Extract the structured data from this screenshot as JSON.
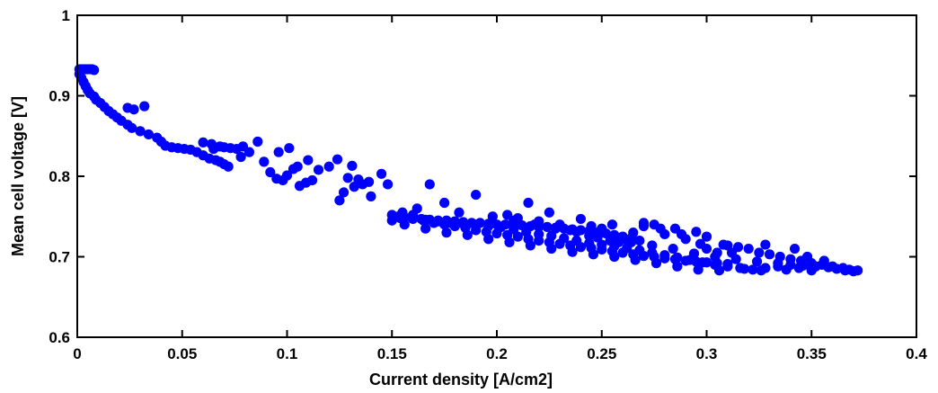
{
  "chart_data": {
    "type": "scatter",
    "title": "",
    "xlabel": "Current density [A/cm2]",
    "ylabel": "Mean cell voltage [V]",
    "xlim": [
      0,
      0.4
    ],
    "ylim": [
      0.6,
      1.0
    ],
    "xticks": [
      "0",
      "0.05",
      "0.1",
      "0.15",
      "0.2",
      "0.25",
      "0.3",
      "0.35",
      "0.4"
    ],
    "yticks": [
      "0.6",
      "0.7",
      "0.8",
      "0.9",
      "1"
    ],
    "grid": false,
    "legend": "none",
    "marker_color": "#0000ff",
    "series": [
      {
        "points": [
          [
            0.001,
            0.933
          ],
          [
            0.002,
            0.933
          ],
          [
            0.003,
            0.933
          ],
          [
            0.004,
            0.933
          ],
          [
            0.005,
            0.933
          ],
          [
            0.006,
            0.933
          ],
          [
            0.007,
            0.933
          ],
          [
            0.008,
            0.932
          ],
          [
            0.001,
            0.927
          ],
          [
            0.002,
            0.922
          ],
          [
            0.003,
            0.917
          ],
          [
            0.004,
            0.912
          ],
          [
            0.005,
            0.907
          ],
          [
            0.006,
            0.903
          ],
          [
            0.008,
            0.899
          ],
          [
            0.009,
            0.895
          ],
          [
            0.011,
            0.891
          ],
          [
            0.013,
            0.886
          ],
          [
            0.015,
            0.881
          ],
          [
            0.017,
            0.877
          ],
          [
            0.019,
            0.873
          ],
          [
            0.021,
            0.869
          ],
          [
            0.024,
            0.864
          ],
          [
            0.026,
            0.86
          ],
          [
            0.024,
            0.885
          ],
          [
            0.027,
            0.883
          ],
          [
            0.032,
            0.887
          ],
          [
            0.03,
            0.856
          ],
          [
            0.034,
            0.852
          ],
          [
            0.038,
            0.848
          ],
          [
            0.04,
            0.843
          ],
          [
            0.042,
            0.838
          ],
          [
            0.045,
            0.836
          ],
          [
            0.048,
            0.835
          ],
          [
            0.051,
            0.834
          ],
          [
            0.054,
            0.833
          ],
          [
            0.057,
            0.83
          ],
          [
            0.06,
            0.826
          ],
          [
            0.063,
            0.822
          ],
          [
            0.066,
            0.82
          ],
          [
            0.068,
            0.818
          ],
          [
            0.07,
            0.815
          ],
          [
            0.072,
            0.812
          ],
          [
            0.065,
            0.834
          ],
          [
            0.068,
            0.837
          ],
          [
            0.07,
            0.836
          ],
          [
            0.073,
            0.835
          ],
          [
            0.076,
            0.834
          ],
          [
            0.06,
            0.842
          ],
          [
            0.064,
            0.84
          ],
          [
            0.079,
            0.837
          ],
          [
            0.078,
            0.824
          ],
          [
            0.082,
            0.83
          ],
          [
            0.086,
            0.843
          ],
          [
            0.089,
            0.818
          ],
          [
            0.092,
            0.805
          ],
          [
            0.095,
            0.797
          ],
          [
            0.098,
            0.795
          ],
          [
            0.1,
            0.801
          ],
          [
            0.103,
            0.809
          ],
          [
            0.106,
            0.788
          ],
          [
            0.109,
            0.792
          ],
          [
            0.112,
            0.795
          ],
          [
            0.096,
            0.83
          ],
          [
            0.101,
            0.835
          ],
          [
            0.105,
            0.812
          ],
          [
            0.11,
            0.82
          ],
          [
            0.115,
            0.808
          ],
          [
            0.12,
            0.812
          ],
          [
            0.124,
            0.821
          ],
          [
            0.127,
            0.78
          ],
          [
            0.129,
            0.798
          ],
          [
            0.132,
            0.787
          ],
          [
            0.136,
            0.79
          ],
          [
            0.139,
            0.793
          ],
          [
            0.131,
            0.813
          ],
          [
            0.134,
            0.796
          ],
          [
            0.145,
            0.803
          ],
          [
            0.14,
            0.775
          ],
          [
            0.125,
            0.77
          ],
          [
            0.148,
            0.79
          ],
          [
            0.15,
            0.752
          ],
          [
            0.153,
            0.75
          ],
          [
            0.156,
            0.749
          ],
          [
            0.16,
            0.748
          ],
          [
            0.164,
            0.747
          ],
          [
            0.168,
            0.746
          ],
          [
            0.172,
            0.745
          ],
          [
            0.176,
            0.745
          ],
          [
            0.18,
            0.744
          ],
          [
            0.184,
            0.743
          ],
          [
            0.188,
            0.742
          ],
          [
            0.192,
            0.742
          ],
          [
            0.196,
            0.741
          ],
          [
            0.2,
            0.74
          ],
          [
            0.204,
            0.74
          ],
          [
            0.208,
            0.739
          ],
          [
            0.212,
            0.739
          ],
          [
            0.216,
            0.738
          ],
          [
            0.22,
            0.737
          ],
          [
            0.224,
            0.737
          ],
          [
            0.228,
            0.736
          ],
          [
            0.232,
            0.735
          ],
          [
            0.236,
            0.734
          ],
          [
            0.24,
            0.733
          ],
          [
            0.244,
            0.732
          ],
          [
            0.248,
            0.73
          ],
          [
            0.252,
            0.729
          ],
          [
            0.256,
            0.727
          ],
          [
            0.26,
            0.725
          ],
          [
            0.264,
            0.723
          ],
          [
            0.268,
            0.72
          ],
          [
            0.155,
            0.755
          ],
          [
            0.16,
            0.752
          ],
          [
            0.165,
            0.745
          ],
          [
            0.17,
            0.742
          ],
          [
            0.175,
            0.74
          ],
          [
            0.18,
            0.738
          ],
          [
            0.185,
            0.736
          ],
          [
            0.19,
            0.733
          ],
          [
            0.195,
            0.731
          ],
          [
            0.2,
            0.729
          ],
          [
            0.205,
            0.727
          ],
          [
            0.21,
            0.725
          ],
          [
            0.215,
            0.722
          ],
          [
            0.22,
            0.72
          ],
          [
            0.225,
            0.718
          ],
          [
            0.23,
            0.716
          ],
          [
            0.235,
            0.714
          ],
          [
            0.24,
            0.712
          ],
          [
            0.245,
            0.711
          ],
          [
            0.25,
            0.709
          ],
          [
            0.255,
            0.707
          ],
          [
            0.26,
            0.705
          ],
          [
            0.265,
            0.703
          ],
          [
            0.27,
            0.701
          ],
          [
            0.275,
            0.7
          ],
          [
            0.28,
            0.698
          ],
          [
            0.285,
            0.697
          ],
          [
            0.29,
            0.695
          ],
          [
            0.295,
            0.694
          ],
          [
            0.3,
            0.693
          ],
          [
            0.305,
            0.692
          ],
          [
            0.31,
            0.691
          ],
          [
            0.162,
            0.76
          ],
          [
            0.168,
            0.79
          ],
          [
            0.175,
            0.767
          ],
          [
            0.182,
            0.755
          ],
          [
            0.19,
            0.777
          ],
          [
            0.198,
            0.75
          ],
          [
            0.205,
            0.752
          ],
          [
            0.21,
            0.748
          ],
          [
            0.215,
            0.767
          ],
          [
            0.22,
            0.744
          ],
          [
            0.225,
            0.755
          ],
          [
            0.23,
            0.74
          ],
          [
            0.235,
            0.733
          ],
          [
            0.24,
            0.747
          ],
          [
            0.245,
            0.738
          ],
          [
            0.25,
            0.735
          ],
          [
            0.255,
            0.74
          ],
          [
            0.26,
            0.722
          ],
          [
            0.265,
            0.73
          ],
          [
            0.27,
            0.738
          ],
          [
            0.275,
            0.74
          ],
          [
            0.28,
            0.728
          ],
          [
            0.285,
            0.735
          ],
          [
            0.29,
            0.722
          ],
          [
            0.295,
            0.731
          ],
          [
            0.297,
            0.716
          ],
          [
            0.3,
            0.71
          ],
          [
            0.305,
            0.705
          ],
          [
            0.31,
            0.714
          ],
          [
            0.315,
            0.712
          ],
          [
            0.32,
            0.71
          ],
          [
            0.325,
            0.705
          ],
          [
            0.33,
            0.703
          ],
          [
            0.335,
            0.7
          ],
          [
            0.34,
            0.697
          ],
          [
            0.345,
            0.695
          ],
          [
            0.35,
            0.692
          ],
          [
            0.355,
            0.69
          ],
          [
            0.36,
            0.688
          ],
          [
            0.365,
            0.686
          ],
          [
            0.368,
            0.684
          ],
          [
            0.372,
            0.683
          ],
          [
            0.37,
            0.682
          ],
          [
            0.366,
            0.683
          ],
          [
            0.362,
            0.685
          ],
          [
            0.358,
            0.687
          ],
          [
            0.352,
            0.688
          ],
          [
            0.346,
            0.689
          ],
          [
            0.34,
            0.69
          ],
          [
            0.334,
            0.688
          ],
          [
            0.328,
            0.686
          ],
          [
            0.322,
            0.684
          ],
          [
            0.316,
            0.686
          ],
          [
            0.31,
            0.688
          ],
          [
            0.304,
            0.69
          ],
          [
            0.298,
            0.693
          ],
          [
            0.292,
            0.696
          ],
          [
            0.286,
            0.699
          ],
          [
            0.28,
            0.702
          ],
          [
            0.274,
            0.705
          ],
          [
            0.268,
            0.708
          ],
          [
            0.262,
            0.711
          ],
          [
            0.256,
            0.713
          ],
          [
            0.25,
            0.715
          ],
          [
            0.244,
            0.717
          ],
          [
            0.238,
            0.72
          ],
          [
            0.232,
            0.723
          ],
          [
            0.226,
            0.726
          ],
          [
            0.22,
            0.728
          ],
          [
            0.214,
            0.731
          ],
          [
            0.208,
            0.734
          ],
          [
            0.202,
            0.737
          ],
          [
            0.196,
            0.738
          ],
          [
            0.19,
            0.74
          ],
          [
            0.184,
            0.741
          ],
          [
            0.178,
            0.742
          ],
          [
            0.172,
            0.744
          ],
          [
            0.166,
            0.746
          ],
          [
            0.16,
            0.747
          ],
          [
            0.154,
            0.748
          ],
          [
            0.244,
            0.726
          ],
          [
            0.254,
            0.72
          ],
          [
            0.264,
            0.718
          ],
          [
            0.274,
            0.714
          ],
          [
            0.284,
            0.71
          ],
          [
            0.294,
            0.704
          ],
          [
            0.304,
            0.7
          ],
          [
            0.314,
            0.697
          ],
          [
            0.324,
            0.694
          ],
          [
            0.334,
            0.692
          ],
          [
            0.344,
            0.686
          ],
          [
            0.35,
            0.683
          ],
          [
            0.338,
            0.684
          ],
          [
            0.326,
            0.683
          ],
          [
            0.318,
            0.685
          ],
          [
            0.306,
            0.683
          ],
          [
            0.296,
            0.684
          ],
          [
            0.286,
            0.688
          ],
          [
            0.276,
            0.692
          ],
          [
            0.266,
            0.696
          ],
          [
            0.256,
            0.7
          ],
          [
            0.246,
            0.703
          ],
          [
            0.236,
            0.706
          ],
          [
            0.226,
            0.71
          ],
          [
            0.216,
            0.714
          ],
          [
            0.206,
            0.718
          ],
          [
            0.196,
            0.722
          ],
          [
            0.186,
            0.727
          ],
          [
            0.176,
            0.73
          ],
          [
            0.166,
            0.735
          ],
          [
            0.156,
            0.74
          ],
          [
            0.15,
            0.745
          ],
          [
            0.3,
            0.725
          ],
          [
            0.308,
            0.715
          ],
          [
            0.312,
            0.705
          ],
          [
            0.328,
            0.715
          ],
          [
            0.342,
            0.71
          ],
          [
            0.348,
            0.7
          ],
          [
            0.356,
            0.695
          ],
          [
            0.27,
            0.742
          ],
          [
            0.278,
            0.735
          ],
          [
            0.288,
            0.728
          ],
          [
            0.258,
            0.718
          ],
          [
            0.248,
            0.724
          ],
          [
            0.238,
            0.731
          ],
          [
            0.228,
            0.735
          ],
          [
            0.218,
            0.74
          ],
          [
            0.208,
            0.745
          ]
        ]
      }
    ]
  }
}
